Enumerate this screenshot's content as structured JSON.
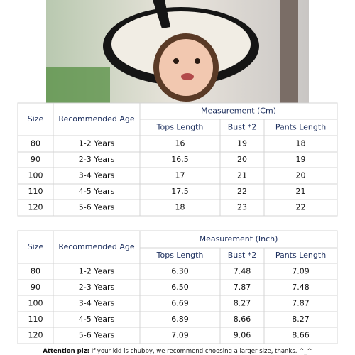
{
  "tables": [
    {
      "headers": {
        "size": "Size",
        "age": "Recommended Age",
        "measurement": "Measurement (Cm)",
        "columns": [
          "Tops Length",
          "Bust *2",
          "Pants Length"
        ]
      },
      "rows": [
        [
          "80",
          "1-2 Years",
          "16",
          "19",
          "18"
        ],
        [
          "90",
          "2-3 Years",
          "16.5",
          "20",
          "19"
        ],
        [
          "100",
          "3-4 Years",
          "17",
          "21",
          "20"
        ],
        [
          "110",
          "4-5 Years",
          "17.5",
          "22",
          "21"
        ],
        [
          "120",
          "5-6 Years",
          "18",
          "23",
          "22"
        ]
      ]
    },
    {
      "headers": {
        "size": "Size",
        "age": "Recommended Age",
        "measurement": "Measurement (Inch)",
        "columns": [
          "Tops Length",
          "Bust *2",
          "Pants Length"
        ]
      },
      "rows": [
        [
          "80",
          "1-2 Years",
          "6.30",
          "7.48",
          "7.09"
        ],
        [
          "90",
          "2-3 Years",
          "6.50",
          "7.87",
          "7.48"
        ],
        [
          "100",
          "3-4 Years",
          "6.69",
          "8.27",
          "7.87"
        ],
        [
          "110",
          "4-5 Years",
          "6.89",
          "8.66",
          "8.27"
        ],
        [
          "120",
          "5-6 Years",
          "7.09",
          "9.06",
          "8.66"
        ]
      ]
    }
  ],
  "footer": {
    "label": "Attention plz:",
    "text": " If your kid is chubby, we recommend choosing a larger size, thanks. ^_^"
  }
}
